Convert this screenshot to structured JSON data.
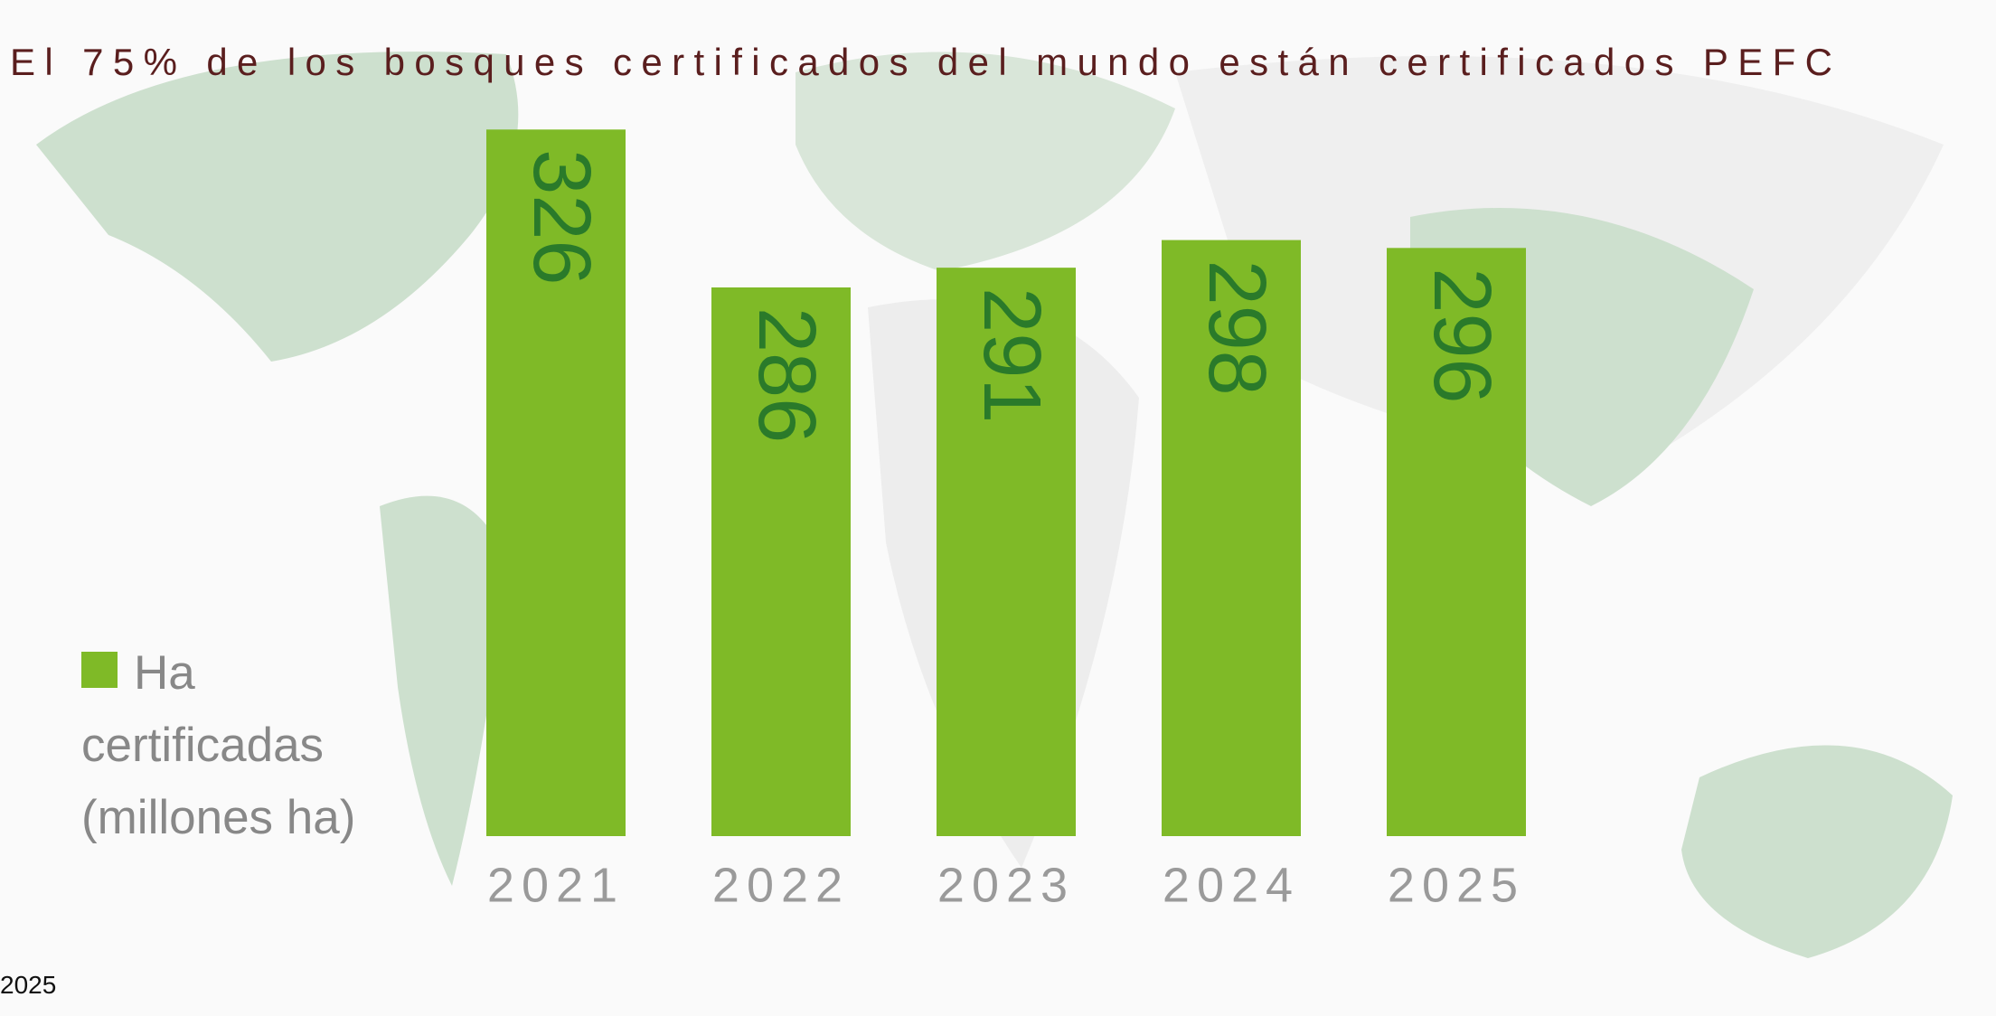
{
  "chart_data": {
    "type": "bar",
    "title": "El 75% de los bosques certificados del mundo están certificados PEFC",
    "categories": [
      "2021",
      "2022",
      "2023",
      "2024",
      "2025"
    ],
    "series": [
      {
        "name": "Ha certificadas (millones ha)",
        "color": "#7fba27",
        "values": [
          326,
          286,
          291,
          298,
          296
        ]
      }
    ],
    "ylim": [
      147,
      335
    ],
    "footnote": "2025"
  }
}
